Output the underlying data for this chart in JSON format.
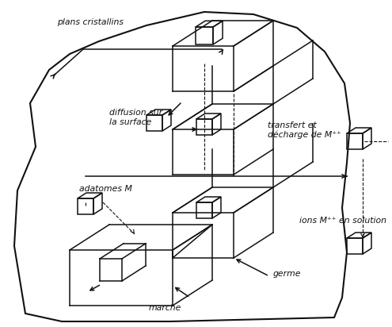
{
  "bg_color": "#ffffff",
  "line_color": "#111111",
  "text_color": "#111111",
  "figsize": [
    4.95,
    4.12
  ],
  "dpi": 100,
  "labels": {
    "plans_cristallins": "plans cristallins",
    "diffusion_sur": "diffusion sur",
    "la_surface": "la surface",
    "adatomes_M": "adatomes M",
    "transfert_et": "transfert et",
    "decharge_de": "décharge de M⁺⁺",
    "ions_M": "ions M⁺⁺ en solution",
    "germe": "germe",
    "marche": "marche"
  }
}
